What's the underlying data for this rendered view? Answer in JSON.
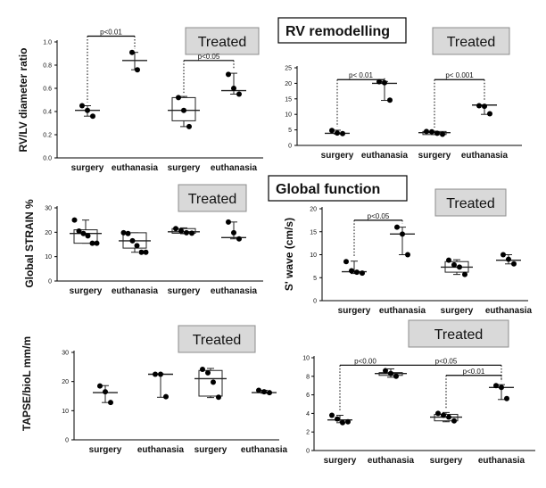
{
  "titles": {
    "rv_remodelling": "RV remodelling",
    "global_function": "Global  function"
  },
  "treated_label": "Treated",
  "chart_data": [
    {
      "type": "box",
      "ylabel": "RV/LV diameter ratio",
      "ylim": [
        0,
        1.0
      ],
      "yticks": [
        "0.0",
        "0.2",
        "0.4",
        "0.6",
        "0.8",
        "1.0"
      ],
      "categories": [
        "surgery",
        "euthanasia",
        "surgery",
        "euthanasia"
      ],
      "treated_from": 2,
      "groups": [
        {
          "points": [
            0.45,
            0.41,
            0.36
          ],
          "q1": 0.39,
          "median": 0.41,
          "q3": 0.44,
          "min": 0.36,
          "max": 0.45,
          "box": false
        },
        {
          "points": [
            0.91,
            0.76
          ],
          "q1": 0.8,
          "median": 0.84,
          "q3": 0.9,
          "min": 0.76,
          "max": 0.91,
          "box": false
        },
        {
          "points": [
            0.52,
            0.41,
            0.27
          ],
          "q1": 0.32,
          "median": 0.41,
          "q3": 0.52,
          "min": 0.27,
          "max": 0.53,
          "box": true
        },
        {
          "points": [
            0.72,
            0.6,
            0.55
          ],
          "q1": 0.56,
          "median": 0.58,
          "q3": 0.72,
          "min": 0.55,
          "max": 0.73,
          "box": false
        }
      ],
      "comparisons": [
        {
          "from": 0,
          "to": 1,
          "y": 1.05,
          "label": "p<0.01"
        },
        {
          "from": 2,
          "to": 3,
          "y": 0.84,
          "label": "p<0.05"
        }
      ]
    },
    {
      "type": "box",
      "ylabel": "",
      "ylim": [
        0,
        25
      ],
      "yticks": [
        "0",
        "5",
        "10",
        "15",
        "20",
        "25"
      ],
      "categories": [
        "surgery",
        "euthanasia",
        "surgery",
        "euthanasia"
      ],
      "treated_from": 2,
      "groups": [
        {
          "points": [
            4.8,
            4.0,
            3.8
          ],
          "q1": 3.8,
          "median": 3.9,
          "q3": 4.8,
          "min": 3.7,
          "max": 4.9,
          "box": false
        },
        {
          "points": [
            20.5,
            20.2,
            14.6
          ],
          "q1": 15.0,
          "median": 20.0,
          "q3": 20.4,
          "min": 14.5,
          "max": 20.6,
          "box": false
        },
        {
          "points": [
            4.5,
            4.4,
            3.9,
            3.6
          ],
          "q1": 3.5,
          "median": 4.1,
          "q3": 4.5,
          "min": 3.5,
          "max": 4.6,
          "box": true
        },
        {
          "points": [
            12.8,
            12.6,
            10.2
          ],
          "q1": 10.0,
          "median": 13.0,
          "q3": 13.0,
          "min": 10.0,
          "max": 13.0,
          "box": false
        }
      ],
      "comparisons": [
        {
          "from": 0,
          "to": 1,
          "y": 21.2,
          "label": "p< 0.01"
        },
        {
          "from": 2,
          "to": 3,
          "y": 21.2,
          "label": "p< 0.001"
        }
      ]
    },
    {
      "type": "box",
      "ylabel": "Global STRAIN %",
      "ylim": [
        0,
        30
      ],
      "yticks": [
        "0",
        "10",
        "20",
        "30"
      ],
      "categories": [
        "surgery",
        "euthanasia",
        "surgery",
        "euthanasia"
      ],
      "treated_from": 2,
      "groups": [
        {
          "points": [
            25,
            20.5,
            19.5,
            18.5,
            15.5,
            15.5
          ],
          "q1": 15.5,
          "median": 19.5,
          "q3": 21,
          "min": 15.5,
          "max": 25,
          "box": true
        },
        {
          "points": [
            19.8,
            19.5,
            16.5,
            14.5,
            11.8,
            11.8
          ],
          "q1": 13.5,
          "median": 16.5,
          "q3": 19.8,
          "min": 11.8,
          "max": 19.8,
          "box": true
        },
        {
          "points": [
            21.5,
            20.6,
            19.8,
            19.6
          ],
          "q1": 19.6,
          "median": 20.2,
          "q3": 21.5,
          "min": 19.4,
          "max": 21.8,
          "box": true
        },
        {
          "points": [
            24.2,
            19.8,
            17.3
          ],
          "q1": 17.8,
          "median": 17.8,
          "q3": 17.8,
          "min": 17.3,
          "max": 24.2,
          "box": false
        }
      ],
      "comparisons": []
    },
    {
      "type": "box",
      "ylabel": "S' wave  (cm/s)",
      "ylim": [
        0,
        20
      ],
      "yticks": [
        "0",
        "5",
        "10",
        "15",
        "20"
      ],
      "categories": [
        "surgery",
        "euthanasia",
        "surgery",
        "euthanasia"
      ],
      "treated_from": 2,
      "groups": [
        {
          "points": [
            8.5,
            6.5,
            6.2,
            6.0
          ],
          "q1": 6.0,
          "median": 6.3,
          "q3": 6.5,
          "min": 5.9,
          "max": 8.6,
          "box": false
        },
        {
          "points": [
            16.0,
            14.5,
            10.0
          ],
          "q1": 10.0,
          "median": 14.5,
          "q3": 16.0,
          "min": 10.0,
          "max": 16.0,
          "box": false
        },
        {
          "points": [
            8.8,
            7.8,
            7.3,
            5.7
          ],
          "q1": 6.2,
          "median": 7.3,
          "q3": 8.5,
          "min": 5.7,
          "max": 8.9,
          "box": true
        },
        {
          "points": [
            10.0,
            9.0,
            8.0
          ],
          "q1": 8.8,
          "median": 8.8,
          "q3": 8.8,
          "min": 8.0,
          "max": 10.0,
          "box": false
        }
      ],
      "comparisons": [
        {
          "from": 0,
          "to": 1,
          "y": 17.5,
          "label": "p<0.05"
        }
      ]
    },
    {
      "type": "box",
      "ylabel": "TAPSE/bioL mm/m",
      "ylim": [
        0,
        30
      ],
      "yticks": [
        "0",
        "10",
        "20",
        "30"
      ],
      "categories": [
        "surgery",
        "euthanasia",
        "surgery",
        "euthanasia"
      ],
      "treated_from": 2,
      "groups": [
        {
          "points": [
            18.5,
            16.5,
            12.8
          ],
          "q1": 12.8,
          "median": 16.2,
          "q3": 18.6,
          "min": 12.8,
          "max": 18.6,
          "box": false
        },
        {
          "points": [
            22.5,
            22.5,
            14.8
          ],
          "q1": 14.8,
          "median": 22.5,
          "q3": 22.5,
          "min": 14.6,
          "max": 22.6,
          "box": false
        },
        {
          "points": [
            24.2,
            23.0,
            19.8,
            14.6
          ],
          "q1": 15.0,
          "median": 21.0,
          "q3": 23.8,
          "min": 14.5,
          "max": 24.5,
          "box": true
        },
        {
          "points": [
            17.0,
            16.5,
            16.2
          ],
          "q1": 16.2,
          "median": 16.2,
          "q3": 16.2,
          "min": 16.0,
          "max": 17.0,
          "box": false
        }
      ],
      "comparisons": []
    },
    {
      "type": "box",
      "ylabel": "",
      "ylim": [
        0,
        10
      ],
      "yticks": [
        "0",
        "2",
        "4",
        "6",
        "8",
        "10"
      ],
      "categories": [
        "surgery",
        "euthanasia",
        "surgery",
        "euthanasia"
      ],
      "treated_from": 2,
      "groups": [
        {
          "points": [
            3.8,
            3.4,
            3.0,
            3.1
          ],
          "q1": 3.1,
          "median": 3.3,
          "q3": 3.4,
          "min": 3.0,
          "max": 3.8,
          "box": false
        },
        {
          "points": [
            8.6,
            8.3,
            8.0
          ],
          "q1": 8.1,
          "median": 8.3,
          "q3": 8.4,
          "min": 7.9,
          "max": 8.8,
          "box": true
        },
        {
          "points": [
            4.0,
            3.8,
            3.6,
            3.2
          ],
          "q1": 3.2,
          "median": 3.6,
          "q3": 3.9,
          "min": 3.1,
          "max": 4.1,
          "box": true
        },
        {
          "points": [
            7.0,
            6.8,
            5.6
          ],
          "q1": 6.8,
          "median": 6.8,
          "q3": 6.8,
          "min": 5.5,
          "max": 7.1,
          "box": false
        }
      ],
      "comparisons": [
        {
          "from": 0,
          "to": 1,
          "y": 9.2,
          "label": "p<0.00"
        },
        {
          "from": 1,
          "to": 3,
          "y": 9.2,
          "label": "p<0.05"
        },
        {
          "from": 2,
          "to": 3,
          "y": 8.1,
          "label": "p<0.01"
        }
      ]
    }
  ]
}
